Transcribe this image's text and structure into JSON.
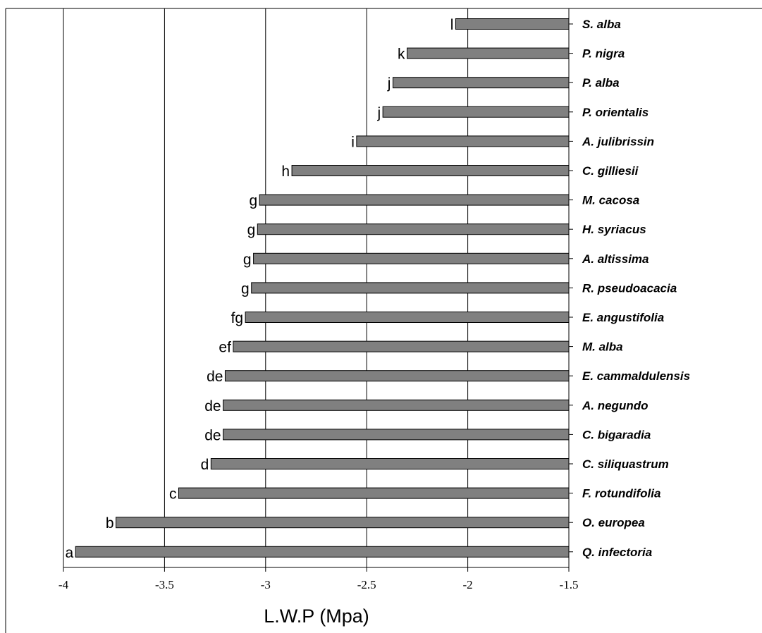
{
  "chart_data": {
    "type": "bar",
    "orientation": "horizontal",
    "title": "",
    "xlabel": "L.W.P (Mpa)",
    "ylabel": "",
    "xlim": [
      -4,
      -1.5
    ],
    "xticks": [
      -4,
      -3.5,
      -3,
      -2.5,
      -2,
      -1.5
    ],
    "xtick_labels": [
      "-4",
      "-3.5",
      "-3",
      "-2.5",
      "-2",
      "-1.5"
    ],
    "grid": "vertical",
    "bar_color": "#808080",
    "categories": [
      "S. alba",
      "P. nigra",
      "P. alba",
      "P. orientalis",
      "A. julibrissin",
      "C. gilliesii",
      "M. cacosa",
      "H. syriacus",
      "A. altissima",
      "R. pseudoacacia",
      "E. angustifolia",
      "M. alba",
      "E. cammaldulensis",
      "A. negundo",
      "C. bigaradia",
      "C. siliquastrum",
      "F. rotundifolia",
      "O. europea",
      "Q. infectoria"
    ],
    "values": [
      -2.06,
      -2.3,
      -2.37,
      -2.42,
      -2.55,
      -2.87,
      -3.03,
      -3.04,
      -3.06,
      -3.07,
      -3.1,
      -3.16,
      -3.2,
      -3.21,
      -3.21,
      -3.27,
      -3.43,
      -3.74,
      -3.94
    ],
    "letters": [
      "l",
      "k",
      "j",
      "j",
      "i",
      "h",
      "g",
      "g",
      "g",
      "g",
      "fg",
      "ef",
      "de",
      "de",
      "de",
      "d",
      "c",
      "b",
      "a"
    ]
  }
}
